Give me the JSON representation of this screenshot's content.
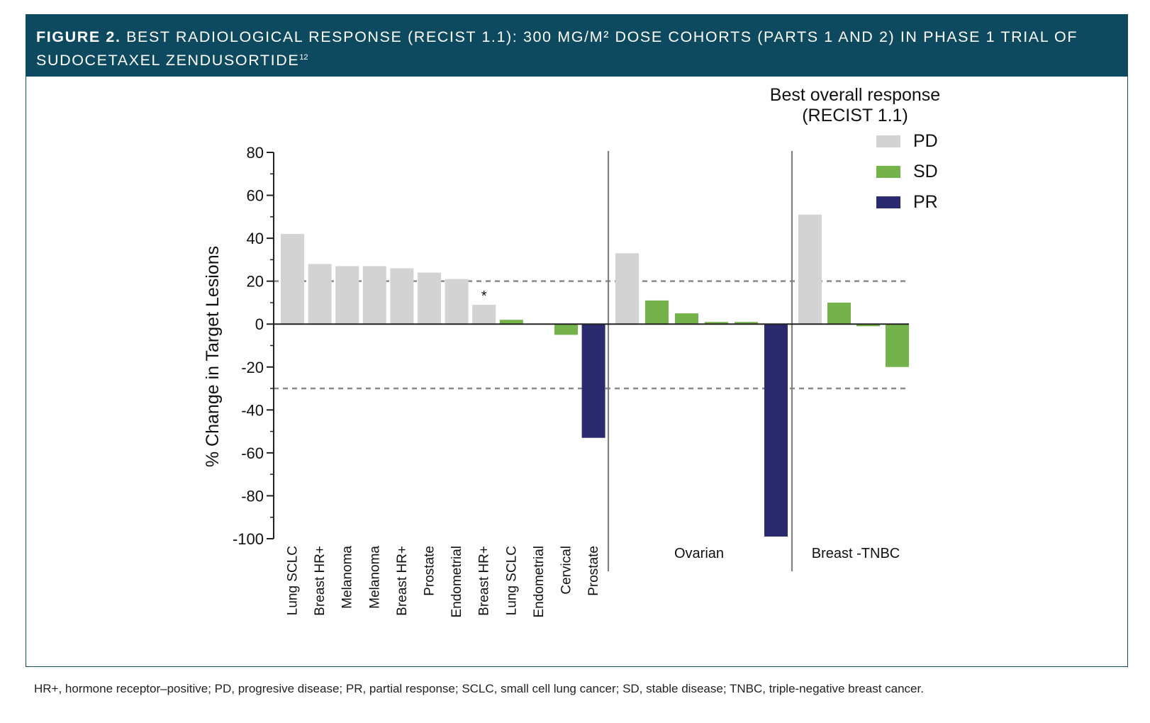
{
  "header": {
    "figure_label": "FIGURE 2.",
    "title": "BEST RADIOLOGICAL RESPONSE (RECIST 1.1): 300 MG/M² DOSE COHORTS (PARTS 1 AND 2) IN PHASE 1 TRIAL OF SUDOCETAXEL ZENDUSORTIDE",
    "reference": "12"
  },
  "footnote": "HR+, hormone receptor–positive; PD, progresive disease; PR, partial response; SCLC, small cell lung cancer; SD, stable disease; TNBC, triple-negative breast cancer.",
  "colors": {
    "PD": "#d3d3d3",
    "SD": "#73b34a",
    "PR": "#2a2a6e",
    "banner": "#0e4a5f",
    "threshold": "#8a8a8a"
  },
  "chart_data": {
    "type": "bar",
    "title": "",
    "ylabel": "% Change in Target Lesions",
    "xlabel": "",
    "ylim": [
      -100,
      80
    ],
    "yticks": [
      80,
      60,
      40,
      20,
      0,
      -20,
      -40,
      -60,
      -80,
      -100
    ],
    "thresholds": [
      20,
      -30
    ],
    "legend": {
      "title_line1": "Best overall response",
      "title_line2": "(RECIST 1.1)",
      "position": "top-right",
      "entries": [
        {
          "label": "PD",
          "response": "PD"
        },
        {
          "label": "SD",
          "response": "SD"
        },
        {
          "label": "PR",
          "response": "PR"
        }
      ]
    },
    "groups": [
      {
        "name": "",
        "bars": [
          {
            "label": "Lung SCLC",
            "value": 42,
            "response": "PD"
          },
          {
            "label": "Breast HR+",
            "value": 28,
            "response": "PD"
          },
          {
            "label": "Melanoma",
            "value": 27,
            "response": "PD"
          },
          {
            "label": "Melanoma",
            "value": 27,
            "response": "PD"
          },
          {
            "label": "Breast HR+",
            "value": 26,
            "response": "PD"
          },
          {
            "label": "Prostate",
            "value": 24,
            "response": "PD"
          },
          {
            "label": "Endometrial",
            "value": 21,
            "response": "PD"
          },
          {
            "label": "Breast HR+",
            "value": 9,
            "response": "PD",
            "annotation": "*"
          },
          {
            "label": "Lung SCLC",
            "value": 2,
            "response": "SD"
          },
          {
            "label": "Endometrial",
            "value": 0,
            "response": "SD"
          },
          {
            "label": "Cervical",
            "value": -5,
            "response": "SD"
          },
          {
            "label": "Prostate",
            "value": -53,
            "response": "PR"
          }
        ]
      },
      {
        "name": "Ovarian",
        "bars": [
          {
            "label": "",
            "value": 33,
            "response": "PD"
          },
          {
            "label": "",
            "value": 11,
            "response": "SD"
          },
          {
            "label": "",
            "value": 5,
            "response": "SD"
          },
          {
            "label": "",
            "value": 1,
            "response": "SD"
          },
          {
            "label": "",
            "value": 1,
            "response": "SD"
          },
          {
            "label": "",
            "value": -99,
            "response": "PR"
          }
        ]
      },
      {
        "name": "Breast -TNBC",
        "bars": [
          {
            "label": "",
            "value": 51,
            "response": "PD"
          },
          {
            "label": "",
            "value": 10,
            "response": "SD"
          },
          {
            "label": "",
            "value": -1,
            "response": "SD"
          },
          {
            "label": "",
            "value": -20,
            "response": "SD"
          }
        ]
      }
    ]
  }
}
